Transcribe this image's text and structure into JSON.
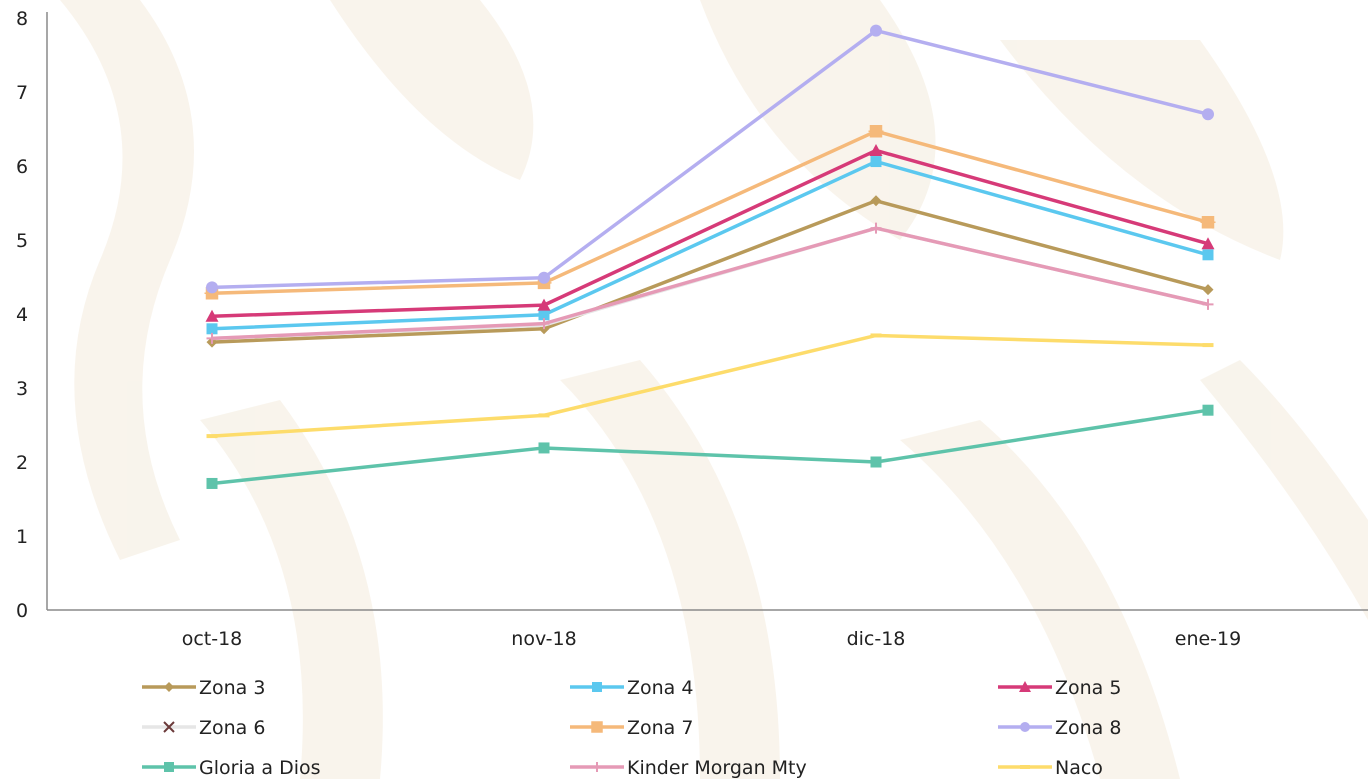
{
  "chart_data": {
    "type": "line",
    "categories": [
      "oct-18",
      "nov-18",
      "dic-18",
      "ene-19"
    ],
    "ylim": [
      0,
      8
    ],
    "yticks": [
      "0",
      "1",
      "2",
      "3",
      "4",
      "5",
      "6",
      "7",
      "8"
    ],
    "grid": false,
    "legend_position": "bottom",
    "series": [
      {
        "name": "Zona 3",
        "color": "#b89a5a",
        "marker": "diamond",
        "values": [
          3.62,
          3.8,
          5.53,
          4.33
        ]
      },
      {
        "name": "Zona 4",
        "color": "#5bc8ef",
        "marker": "square",
        "values": [
          3.8,
          3.99,
          6.06,
          4.8
        ]
      },
      {
        "name": "Zona 5",
        "color": "#d63a78",
        "marker": "triangle",
        "values": [
          3.97,
          4.12,
          6.21,
          4.95
        ]
      },
      {
        "name": "Zona 6",
        "color": "#e6e6e6",
        "marker": "x",
        "values": [
          3.67,
          3.85,
          5.16,
          4.13
        ]
      },
      {
        "name": "Zona 7",
        "color": "#f5b97a",
        "marker": "star",
        "values": [
          4.28,
          4.42,
          6.47,
          5.24
        ]
      },
      {
        "name": "Zona 8",
        "color": "#b4aef0",
        "marker": "circle",
        "values": [
          4.36,
          4.49,
          7.83,
          6.7
        ]
      },
      {
        "name": "Gloria a Dios",
        "color": "#5ec3aa",
        "marker": "square",
        "values": [
          1.71,
          2.19,
          2.0,
          2.7
        ]
      },
      {
        "name": "Kinder Morgan Mty",
        "color": "#e59ab6",
        "marker": "plus",
        "values": [
          3.67,
          3.87,
          5.16,
          4.13
        ]
      },
      {
        "name": "Naco",
        "color": "#fddc6b",
        "marker": "dash",
        "values": [
          2.35,
          2.63,
          3.71,
          3.58
        ]
      }
    ]
  }
}
